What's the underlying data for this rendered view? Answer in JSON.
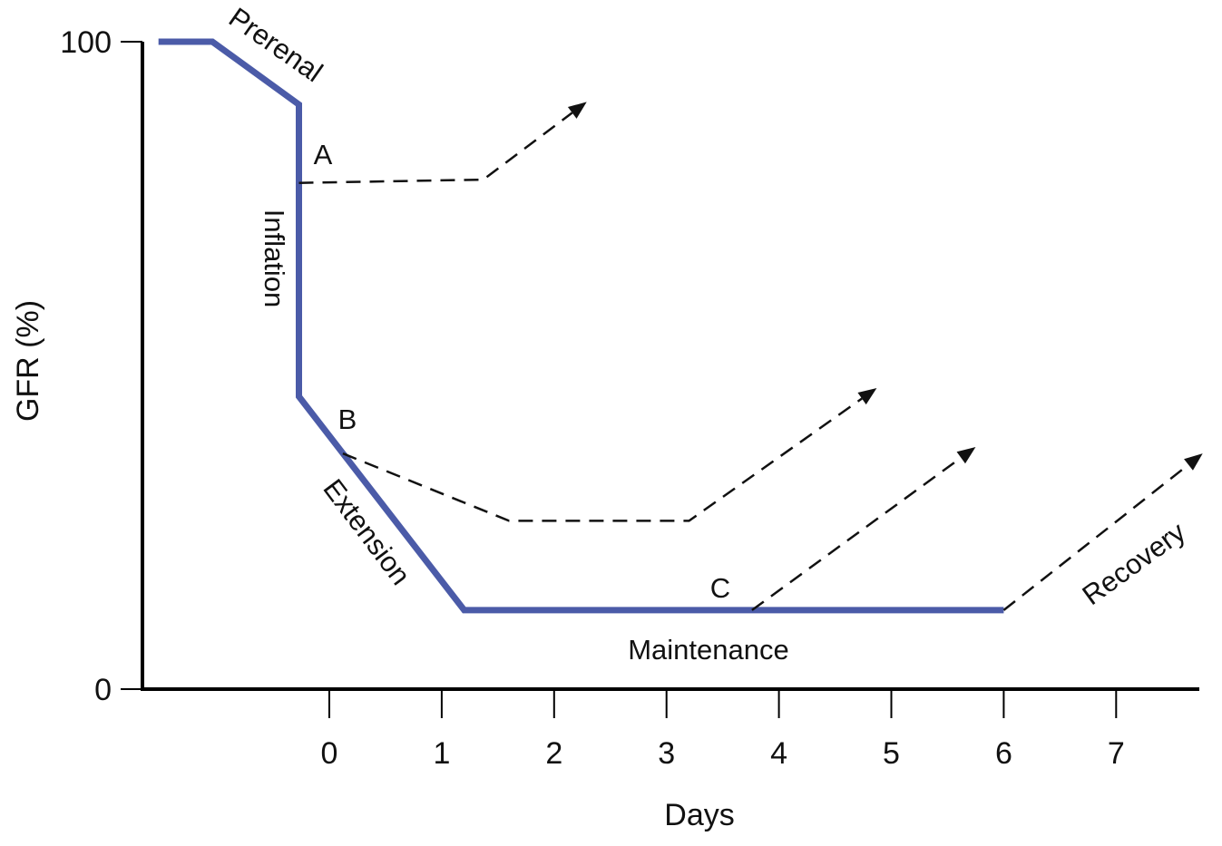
{
  "chart_data": {
    "type": "line",
    "title": "",
    "xlabel": "Days",
    "ylabel": "GFR (%)",
    "xlim": [
      -1.7,
      7.8
    ],
    "ylim": [
      0,
      100
    ],
    "x_ticks": [
      0,
      1,
      2,
      3,
      4,
      5,
      6,
      7
    ],
    "x_tick_labels": [
      "0",
      "1",
      "2",
      "3",
      "4",
      "5",
      "6",
      "7"
    ],
    "y_ticks": [
      0,
      100
    ],
    "y_tick_labels": [
      "0",
      "100"
    ],
    "grid": false,
    "colors": {
      "main": "#4B5BA8",
      "dashed": "#111111",
      "axis": "#000000"
    },
    "series": [
      {
        "name": "GFR course",
        "style": "solid",
        "x": [
          -1.52,
          -1.04,
          -0.27,
          -0.27,
          1.2,
          6.0
        ],
        "y": [
          100,
          100,
          90.3,
          45.2,
          12.2,
          12.2
        ]
      },
      {
        "name": "A",
        "style": "dashed-arrow",
        "x": [
          -0.27,
          1.37,
          2.29
        ],
        "y": [
          78.2,
          78.7,
          90.7
        ]
      },
      {
        "name": "B",
        "style": "dashed-arrow",
        "x": [
          0.12,
          1.6,
          3.2,
          4.87
        ],
        "y": [
          36.4,
          26.0,
          26.0,
          46.5
        ]
      },
      {
        "name": "C",
        "style": "dashed-arrow",
        "x": [
          3.76,
          5.75
        ],
        "y": [
          12.2,
          37.4
        ]
      },
      {
        "name": "Recovery",
        "style": "dashed-arrow",
        "x": [
          6.0,
          7.77
        ],
        "y": [
          12.2,
          36.4
        ]
      }
    ],
    "annotations": {
      "phases": [
        {
          "id": "prerenal",
          "text": "Prerenal"
        },
        {
          "id": "inflation",
          "text": "Inflation"
        },
        {
          "id": "extension",
          "text": "Extension"
        },
        {
          "id": "maintenance",
          "text": "Maintenance"
        },
        {
          "id": "recovery",
          "text": "Recovery"
        }
      ],
      "markers": [
        {
          "id": "a",
          "text": "A"
        },
        {
          "id": "b",
          "text": "B"
        },
        {
          "id": "c",
          "text": "C"
        }
      ]
    }
  }
}
